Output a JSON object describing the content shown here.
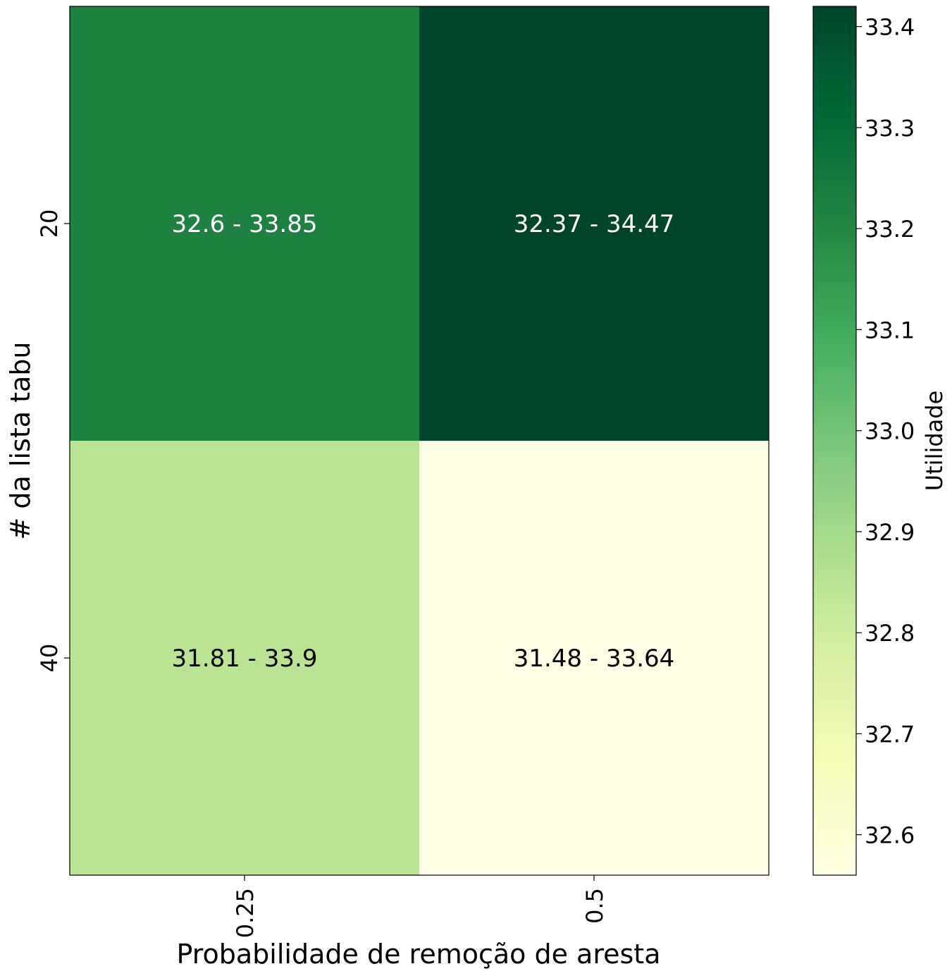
{
  "chart_data": {
    "type": "heatmap",
    "xlabel": "Probabilidade de remoção de aresta",
    "ylabel": "# da lista tabu",
    "x_categories": [
      "0.25",
      "0.5"
    ],
    "y_categories": [
      "20",
      "40"
    ],
    "cells": [
      {
        "x": "0.25",
        "y": "20",
        "value": 33.22,
        "label": "32.6 - 33.85"
      },
      {
        "x": "0.5",
        "y": "20",
        "value": 33.42,
        "label": "32.37 - 34.47"
      },
      {
        "x": "0.25",
        "y": "40",
        "value": 32.85,
        "label": "31.81 - 33.9"
      },
      {
        "x": "0.5",
        "y": "40",
        "value": 32.56,
        "label": "31.48 - 33.64"
      }
    ],
    "colorbar": {
      "label": "Utilidade",
      "colormap": "YlGn",
      "min": 32.56,
      "max": 33.42,
      "ticks": [
        "32.6",
        "32.7",
        "32.8",
        "32.9",
        "33.0",
        "33.1",
        "33.2",
        "33.3",
        "33.4"
      ]
    },
    "colormap_stops": [
      "#ffffe5",
      "#f7fcb9",
      "#d9f0a3",
      "#addd8e",
      "#78c679",
      "#41ab5d",
      "#238443",
      "#006837",
      "#004529"
    ]
  }
}
